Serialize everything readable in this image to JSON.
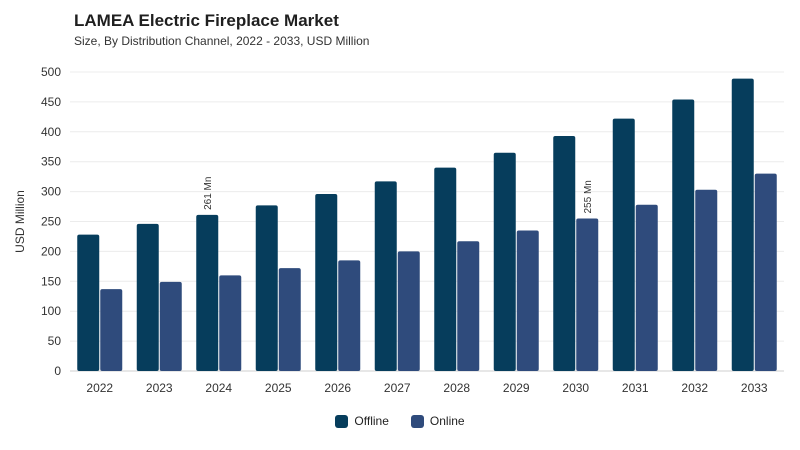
{
  "header": {
    "title": "LAMEA Electric Fireplace Market",
    "subtitle": "Size, By Distribution Channel, 2022 - 2033, USD Million"
  },
  "colors": {
    "offline": "#063d5c",
    "online": "#2f4b7c"
  },
  "chart_data": {
    "type": "bar",
    "title": "LAMEA Electric Fireplace Market",
    "subtitle": "Size, By Distribution Channel, 2022 - 2033, USD Million",
    "xlabel": "",
    "ylabel": "USD Million",
    "ylim": [
      0,
      500
    ],
    "yticks": [
      0,
      50,
      100,
      150,
      200,
      250,
      300,
      350,
      400,
      450,
      500
    ],
    "grid": true,
    "legend_position": "bottom-center",
    "categories": [
      "2022",
      "2023",
      "2024",
      "2025",
      "2026",
      "2027",
      "2028",
      "2029",
      "2030",
      "2031",
      "2032",
      "2033"
    ],
    "series": [
      {
        "name": "Offline",
        "values": [
          228,
          246,
          261,
          277,
          296,
          317,
          340,
          365,
          393,
          422,
          454,
          489
        ]
      },
      {
        "name": "Online",
        "values": [
          137,
          149,
          160,
          172,
          185,
          200,
          217,
          235,
          255,
          278,
          303,
          330
        ]
      }
    ],
    "annotations": [
      {
        "text": "261 Mn",
        "category": "2024",
        "series": "Offline"
      },
      {
        "text": "255 Mn",
        "category": "2030",
        "series": "Online"
      }
    ]
  }
}
